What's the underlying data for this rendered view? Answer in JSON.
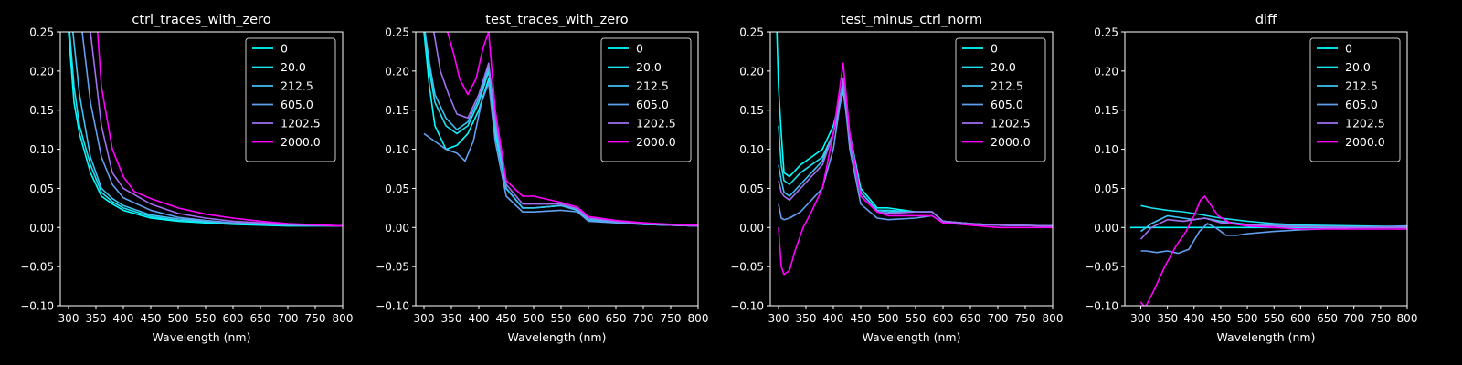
{
  "figure": {
    "background": "#000000",
    "foreground": "#ffffff"
  },
  "series_colors": [
    "#00ffff",
    "#1ee1f0",
    "#3ec1f0",
    "#61a0f0",
    "#a070f0",
    "#ff00ff"
  ],
  "chart_data": [
    {
      "type": "line",
      "title": "ctrl_traces_with_zero",
      "xlabel": "Wavelength (nm)",
      "ylabel": "",
      "xlim": [
        285,
        800
      ],
      "ylim": [
        -0.1,
        0.25
      ],
      "xticks": [
        300,
        350,
        400,
        450,
        500,
        550,
        600,
        650,
        700,
        750,
        800
      ],
      "xtick_labels": [
        "300",
        "350",
        "400",
        "450",
        "500",
        "550",
        "600",
        "650",
        "700",
        "750",
        "800"
      ],
      "yticks": [
        -0.1,
        -0.05,
        0.0,
        0.05,
        0.1,
        0.15,
        0.2,
        0.25
      ],
      "ytick_labels": [
        "−0.10",
        "−0.05",
        "0.00",
        "0.05",
        "0.10",
        "0.15",
        "0.20",
        "0.25"
      ],
      "legend_position": "upper right",
      "grid": false,
      "series": [
        {
          "name": "0",
          "x": [
            300,
            310,
            320,
            340,
            360,
            380,
            400,
            450,
            500,
            550,
            600,
            700,
            800
          ],
          "y": [
            0.25,
            0.16,
            0.12,
            0.07,
            0.04,
            0.03,
            0.022,
            0.012,
            0.008,
            0.006,
            0.004,
            0.002,
            0.002
          ]
        },
        {
          "name": "20.0",
          "x": [
            302,
            310,
            320,
            340,
            360,
            380,
            400,
            450,
            500,
            550,
            600,
            700,
            800
          ],
          "y": [
            0.25,
            0.18,
            0.13,
            0.08,
            0.045,
            0.033,
            0.025,
            0.014,
            0.009,
            0.007,
            0.005,
            0.003,
            0.002
          ]
        },
        {
          "name": "212.5",
          "x": [
            308,
            320,
            340,
            360,
            380,
            400,
            450,
            500,
            550,
            600,
            700,
            800
          ],
          "y": [
            0.25,
            0.17,
            0.09,
            0.05,
            0.037,
            0.028,
            0.016,
            0.011,
            0.008,
            0.006,
            0.003,
            0.002
          ]
        },
        {
          "name": "605.0",
          "x": [
            325,
            340,
            360,
            380,
            400,
            450,
            500,
            550,
            600,
            700,
            800
          ],
          "y": [
            0.25,
            0.16,
            0.09,
            0.055,
            0.038,
            0.022,
            0.013,
            0.009,
            0.006,
            0.003,
            0.002
          ]
        },
        {
          "name": "1202.5",
          "x": [
            340,
            350,
            360,
            380,
            400,
            450,
            500,
            550,
            600,
            700,
            800
          ],
          "y": [
            0.25,
            0.19,
            0.13,
            0.07,
            0.05,
            0.03,
            0.018,
            0.012,
            0.008,
            0.004,
            0.002
          ]
        },
        {
          "name": "2000.0",
          "x": [
            353,
            360,
            380,
            400,
            420,
            450,
            500,
            550,
            600,
            650,
            700,
            800
          ],
          "y": [
            0.25,
            0.18,
            0.1,
            0.065,
            0.046,
            0.037,
            0.025,
            0.017,
            0.012,
            0.008,
            0.005,
            0.002
          ]
        }
      ]
    },
    {
      "type": "line",
      "title": "test_traces_with_zero",
      "xlabel": "Wavelength (nm)",
      "ylabel": "",
      "xlim": [
        285,
        800
      ],
      "ylim": [
        -0.1,
        0.25
      ],
      "xticks": [
        300,
        350,
        400,
        450,
        500,
        550,
        600,
        650,
        700,
        750,
        800
      ],
      "xtick_labels": [
        "300",
        "350",
        "400",
        "450",
        "500",
        "550",
        "600",
        "650",
        "700",
        "750",
        "800"
      ],
      "yticks": [
        -0.1,
        -0.05,
        0.0,
        0.05,
        0.1,
        0.15,
        0.2,
        0.25
      ],
      "ytick_labels": [
        "−0.10",
        "−0.05",
        "0.00",
        "0.05",
        "0.10",
        "0.15",
        "0.20",
        "0.25"
      ],
      "legend_position": "upper right",
      "grid": false,
      "series": [
        {
          "name": "0",
          "x": [
            300,
            310,
            320,
            340,
            360,
            380,
            400,
            418,
            430,
            450,
            480,
            500,
            550,
            580,
            600,
            650,
            700,
            750,
            800
          ],
          "y": [
            0.25,
            0.18,
            0.13,
            0.1,
            0.105,
            0.12,
            0.15,
            0.19,
            0.12,
            0.05,
            0.025,
            0.025,
            0.028,
            0.022,
            0.01,
            0.007,
            0.004,
            0.003,
            0.002
          ]
        },
        {
          "name": "20.0",
          "x": [
            300,
            310,
            320,
            340,
            360,
            380,
            400,
            418,
            430,
            450,
            480,
            500,
            550,
            580,
            600,
            650,
            700,
            750,
            800
          ],
          "y": [
            0.25,
            0.2,
            0.16,
            0.13,
            0.12,
            0.13,
            0.16,
            0.2,
            0.13,
            0.05,
            0.025,
            0.025,
            0.028,
            0.022,
            0.01,
            0.007,
            0.004,
            0.003,
            0.002
          ]
        },
        {
          "name": "212.5",
          "x": [
            302,
            310,
            320,
            340,
            360,
            380,
            400,
            418,
            430,
            450,
            480,
            500,
            550,
            580,
            600,
            650,
            700,
            750,
            800
          ],
          "y": [
            0.25,
            0.21,
            0.17,
            0.14,
            0.125,
            0.135,
            0.165,
            0.205,
            0.13,
            0.05,
            0.025,
            0.025,
            0.028,
            0.022,
            0.01,
            0.007,
            0.004,
            0.003,
            0.002
          ]
        },
        {
          "name": "605.0",
          "x": [
            300,
            320,
            340,
            360,
            375,
            390,
            405,
            418,
            430,
            450,
            480,
            500,
            550,
            580,
            600,
            650,
            700,
            750,
            800
          ],
          "y": [
            0.12,
            0.11,
            0.1,
            0.095,
            0.085,
            0.11,
            0.16,
            0.185,
            0.11,
            0.04,
            0.02,
            0.02,
            0.022,
            0.02,
            0.008,
            0.006,
            0.004,
            0.003,
            0.002
          ]
        },
        {
          "name": "1202.5",
          "x": [
            318,
            330,
            345,
            360,
            380,
            400,
            418,
            430,
            450,
            480,
            500,
            550,
            580,
            600,
            650,
            700,
            750,
            800
          ],
          "y": [
            0.25,
            0.2,
            0.17,
            0.145,
            0.14,
            0.17,
            0.21,
            0.14,
            0.055,
            0.03,
            0.03,
            0.03,
            0.024,
            0.012,
            0.008,
            0.005,
            0.003,
            0.002
          ]
        },
        {
          "name": "2000.0",
          "x": [
            343,
            355,
            365,
            380,
            395,
            408,
            418,
            430,
            450,
            480,
            500,
            550,
            580,
            600,
            650,
            700,
            750,
            800
          ],
          "y": [
            0.25,
            0.22,
            0.19,
            0.17,
            0.19,
            0.23,
            0.25,
            0.15,
            0.06,
            0.04,
            0.04,
            0.032,
            0.026,
            0.014,
            0.009,
            0.006,
            0.004,
            0.003
          ]
        }
      ]
    },
    {
      "type": "line",
      "title": "test_minus_ctrl_norm",
      "xlabel": "Wavelength (nm)",
      "ylabel": "",
      "xlim": [
        285,
        800
      ],
      "ylim": [
        -0.1,
        0.25
      ],
      "xticks": [
        300,
        350,
        400,
        450,
        500,
        550,
        600,
        650,
        700,
        750,
        800
      ],
      "xtick_labels": [
        "300",
        "350",
        "400",
        "450",
        "500",
        "550",
        "600",
        "650",
        "700",
        "750",
        "800"
      ],
      "yticks": [
        -0.1,
        -0.05,
        0.0,
        0.05,
        0.1,
        0.15,
        0.2,
        0.25
      ],
      "ytick_labels": [
        "−0.10",
        "−0.05",
        "0.00",
        "0.05",
        "0.10",
        "0.15",
        "0.20",
        "0.25"
      ],
      "legend_position": "upper right",
      "grid": false,
      "series": [
        {
          "name": "0",
          "x": [
            297,
            300,
            305,
            310,
            320,
            340,
            360,
            380,
            400,
            418,
            430,
            450,
            480,
            500,
            550,
            580,
            600,
            650,
            700,
            800
          ],
          "y": [
            0.25,
            0.18,
            0.12,
            0.07,
            0.065,
            0.08,
            0.09,
            0.1,
            0.13,
            0.18,
            0.12,
            0.05,
            0.025,
            0.025,
            0.02,
            0.02,
            0.008,
            0.005,
            0.003,
            0.002
          ]
        },
        {
          "name": "20.0",
          "x": [
            300,
            305,
            310,
            320,
            340,
            360,
            380,
            400,
            418,
            430,
            450,
            480,
            500,
            550,
            580,
            600,
            650,
            700,
            800
          ],
          "y": [
            0.13,
            0.08,
            0.06,
            0.055,
            0.07,
            0.08,
            0.09,
            0.12,
            0.175,
            0.11,
            0.045,
            0.022,
            0.022,
            0.02,
            0.02,
            0.008,
            0.005,
            0.003,
            0.002
          ]
        },
        {
          "name": "212.5",
          "x": [
            300,
            305,
            310,
            320,
            340,
            360,
            380,
            400,
            418,
            430,
            450,
            480,
            500,
            550,
            580,
            600,
            650,
            700,
            800
          ],
          "y": [
            0.08,
            0.06,
            0.045,
            0.04,
            0.055,
            0.07,
            0.085,
            0.12,
            0.18,
            0.11,
            0.045,
            0.022,
            0.02,
            0.02,
            0.02,
            0.008,
            0.005,
            0.003,
            0.002
          ]
        },
        {
          "name": "605.0",
          "x": [
            300,
            305,
            310,
            320,
            340,
            360,
            380,
            400,
            418,
            430,
            450,
            480,
            500,
            550,
            580,
            600,
            650,
            700,
            800
          ],
          "y": [
            0.03,
            0.012,
            0.01,
            0.012,
            0.02,
            0.035,
            0.05,
            0.1,
            0.185,
            0.1,
            0.03,
            0.012,
            0.01,
            0.012,
            0.015,
            0.006,
            0.004,
            0.003,
            0.002
          ]
        },
        {
          "name": "1202.5",
          "x": [
            300,
            305,
            310,
            320,
            340,
            360,
            380,
            400,
            418,
            430,
            450,
            480,
            500,
            550,
            580,
            600,
            650,
            700,
            800
          ],
          "y": [
            0.06,
            0.045,
            0.04,
            0.035,
            0.05,
            0.065,
            0.08,
            0.12,
            0.19,
            0.11,
            0.04,
            0.02,
            0.018,
            0.02,
            0.02,
            0.008,
            0.005,
            0.003,
            0.002
          ]
        },
        {
          "name": "2000.0",
          "x": [
            300,
            305,
            310,
            320,
            330,
            345,
            360,
            380,
            400,
            418,
            430,
            450,
            480,
            500,
            550,
            580,
            600,
            650,
            700,
            800
          ],
          "y": [
            0.0,
            -0.05,
            -0.06,
            -0.055,
            -0.03,
            0.0,
            0.02,
            0.05,
            0.12,
            0.21,
            0.12,
            0.04,
            0.02,
            0.015,
            0.015,
            0.015,
            0.006,
            0.003,
            0.0,
            0.0
          ]
        }
      ]
    },
    {
      "type": "line",
      "title": "diff",
      "xlabel": "Wavelength (nm)",
      "ylabel": "",
      "xlim": [
        270,
        800
      ],
      "ylim": [
        -0.1,
        0.25
      ],
      "xticks": [
        300,
        350,
        400,
        450,
        500,
        550,
        600,
        650,
        700,
        750,
        800
      ],
      "xtick_labels": [
        "300",
        "350",
        "400",
        "450",
        "500",
        "550",
        "600",
        "650",
        "700",
        "750",
        "800"
      ],
      "yticks": [
        -0.1,
        -0.05,
        0.0,
        0.05,
        0.1,
        0.15,
        0.2,
        0.25
      ],
      "ytick_labels": [
        "−0.10",
        "−0.05",
        "0.00",
        "0.05",
        "0.10",
        "0.15",
        "0.20",
        "0.25"
      ],
      "legend_position": "upper right",
      "grid": false,
      "series": [
        {
          "name": "0",
          "x": [
            280,
            800
          ],
          "y": [
            0.0,
            0.0
          ]
        },
        {
          "name": "20.0",
          "x": [
            300,
            320,
            350,
            380,
            400,
            450,
            500,
            550,
            600,
            700,
            800
          ],
          "y": [
            0.028,
            0.025,
            0.022,
            0.02,
            0.018,
            0.012,
            0.008,
            0.005,
            0.003,
            0.002,
            0.001
          ]
        },
        {
          "name": "212.5",
          "x": [
            300,
            320,
            350,
            380,
            400,
            420,
            450,
            500,
            550,
            600,
            700,
            800
          ],
          "y": [
            -0.005,
            0.005,
            0.015,
            0.012,
            0.01,
            0.012,
            0.008,
            0.004,
            0.003,
            0.002,
            0.001,
            0.0
          ]
        },
        {
          "name": "605.0",
          "x": [
            300,
            310,
            330,
            350,
            370,
            390,
            410,
            425,
            440,
            460,
            480,
            500,
            550,
            600,
            700,
            800
          ],
          "y": [
            -0.03,
            -0.03,
            -0.032,
            -0.03,
            -0.033,
            -0.028,
            -0.005,
            0.005,
            0.0,
            -0.01,
            -0.01,
            -0.008,
            -0.005,
            -0.003,
            0.0,
            0.002
          ]
        },
        {
          "name": "1202.5",
          "x": [
            300,
            320,
            350,
            380,
            400,
            420,
            450,
            500,
            550,
            600,
            700,
            800
          ],
          "y": [
            -0.015,
            0.0,
            0.01,
            0.008,
            0.01,
            0.012,
            0.006,
            0.003,
            0.002,
            0.001,
            0.0,
            0.0
          ]
        },
        {
          "name": "2000.0",
          "x": [
            300,
            305,
            310,
            325,
            345,
            365,
            385,
            400,
            412,
            420,
            430,
            445,
            470,
            500,
            550,
            600,
            700,
            800
          ],
          "y": [
            -0.095,
            -0.1,
            -0.1,
            -0.08,
            -0.05,
            -0.025,
            -0.005,
            0.015,
            0.035,
            0.04,
            0.03,
            0.015,
            0.005,
            0.002,
            0.0,
            -0.002,
            -0.002,
            -0.002
          ]
        }
      ]
    }
  ]
}
